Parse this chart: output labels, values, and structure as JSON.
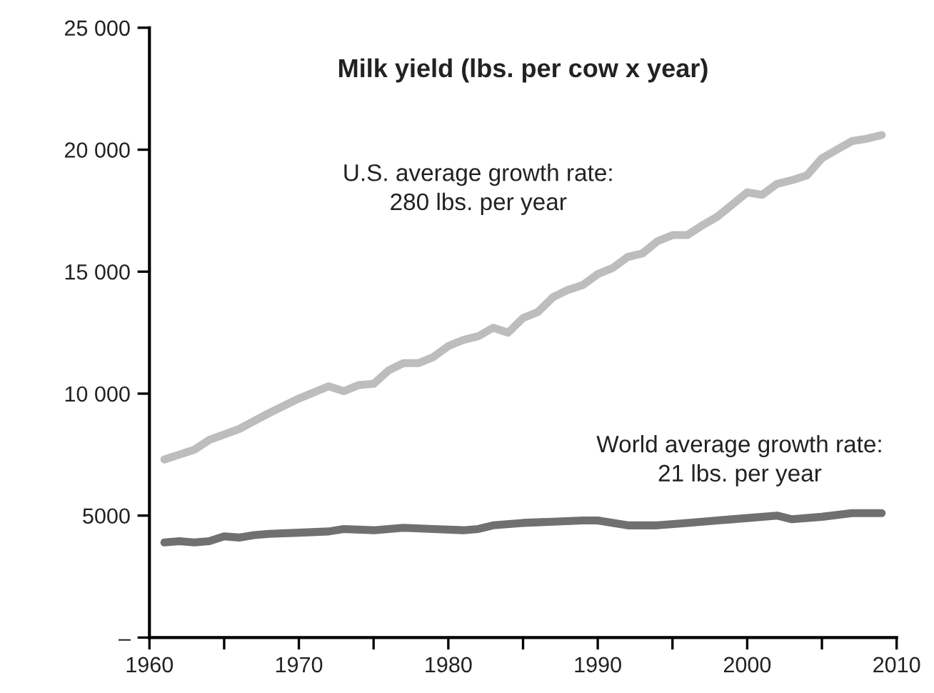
{
  "chart_data": {
    "type": "line",
    "title": "Milk yield (lbs. per cow x year)",
    "xlim": [
      1960,
      2010
    ],
    "xticks": [
      1960,
      {
        "value": 1965,
        "label": null
      },
      1970,
      {
        "value": 1975,
        "label": null
      },
      1980,
      {
        "value": 1985,
        "label": null
      },
      1990,
      {
        "value": 1995,
        "label": null
      },
      2000,
      {
        "value": 2005,
        "label": null
      },
      2010
    ],
    "ylim": [
      0,
      25000
    ],
    "yticks": [
      {
        "value": 0,
        "label": "–"
      },
      5000,
      {
        "value": 10000,
        "label": "10 000"
      },
      {
        "value": 15000,
        "label": "15 000"
      },
      {
        "value": 20000,
        "label": "20 000"
      },
      {
        "value": 25000,
        "label": "25 000"
      }
    ],
    "grid": false,
    "legend": false,
    "marker": "none",
    "line_style": "solid",
    "series": [
      {
        "color": "#bdbdbd",
        "x": [
          1961,
          1963,
          1964,
          1966,
          1968,
          1970,
          1972,
          1973,
          1974,
          1975,
          1976,
          1977,
          1978,
          1979,
          1980,
          1981,
          1982,
          1983,
          1984,
          1985,
          1986,
          1987,
          1988,
          1989,
          1990,
          1991,
          1992,
          1993,
          1994,
          1995,
          1996,
          1997,
          1998,
          1999,
          2000,
          2001,
          2002,
          2003,
          2004,
          2005,
          2006,
          2007,
          2008,
          2009
        ],
        "values": [
          7300,
          7700,
          8100,
          8550,
          9200,
          9800,
          10300,
          10100,
          10350,
          10400,
          10950,
          11250,
          11250,
          11500,
          11950,
          12200,
          12350,
          12700,
          12500,
          13100,
          13350,
          13950,
          14250,
          14450,
          14900,
          15150,
          15600,
          15750,
          16250,
          16500,
          16500,
          16900,
          17250,
          17750,
          18250,
          18150,
          18600,
          18750,
          18950,
          19650,
          20000,
          20350,
          20450,
          20600
        ]
      },
      {
        "color": "#707070",
        "x": [
          1961,
          1962,
          1963,
          1964,
          1965,
          1966,
          1967,
          1968,
          1970,
          1972,
          1973,
          1975,
          1977,
          1979,
          1981,
          1982,
          1983,
          1985,
          1987,
          1989,
          1990,
          1992,
          1994,
          1996,
          1998,
          2000,
          2002,
          2003,
          2005,
          2007,
          2009
        ],
        "values": [
          3900,
          3950,
          3900,
          3950,
          4150,
          4100,
          4200,
          4250,
          4300,
          4350,
          4450,
          4400,
          4500,
          4450,
          4400,
          4450,
          4600,
          4700,
          4750,
          4800,
          4800,
          4600,
          4600,
          4700,
          4800,
          4900,
          5000,
          4850,
          4950,
          5100,
          5100
        ]
      }
    ],
    "annotations": [
      "U.S. average growth rate:\n280 lbs. per year",
      "World average growth rate:\n21 lbs. per year"
    ]
  }
}
